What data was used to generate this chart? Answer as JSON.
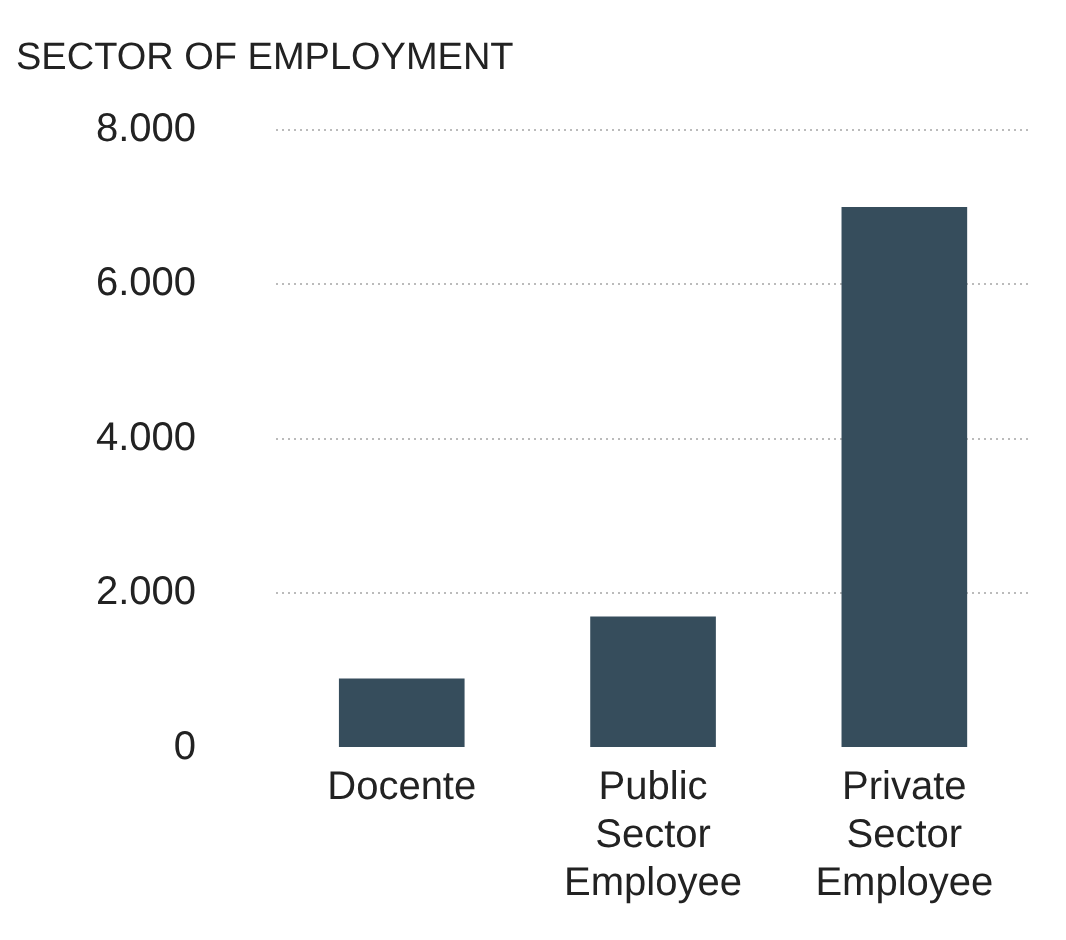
{
  "chart_data": {
    "type": "bar",
    "title": "SECTOR OF EMPLOYMENT",
    "categories": [
      "Docente",
      "Public Sector Employee",
      "Private Sector Employee"
    ],
    "values": [
      900,
      1700,
      7000
    ],
    "color": "#364d5c",
    "ylim": [
      0,
      8000
    ],
    "yticks": [
      0,
      {
        "value": 2000,
        "label": "2.000"
      },
      {
        "value": 4000,
        "label": "4.000"
      },
      {
        "value": 6000,
        "label": "6.000"
      },
      {
        "value": 8000,
        "label": "8.000"
      }
    ],
    "grid": "y"
  }
}
